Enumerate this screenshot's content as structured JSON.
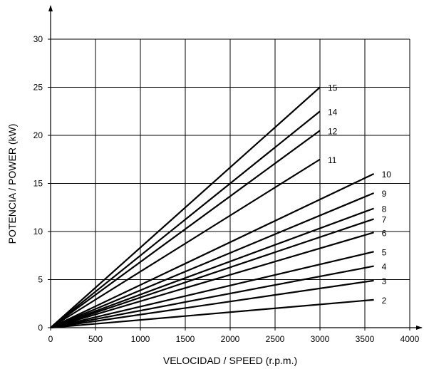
{
  "chart_data": {
    "type": "line",
    "title": "",
    "xlabel": "VELOCIDAD / SPEED (r.p.m.)",
    "ylabel": "POTENCIA / POWER (kW)",
    "xlim": [
      0,
      4000
    ],
    "ylim": [
      0,
      30
    ],
    "x_ticks": [
      0,
      500,
      1000,
      1500,
      2000,
      2500,
      3000,
      3500,
      4000
    ],
    "y_ticks": [
      0,
      5,
      10,
      15,
      20,
      25,
      30
    ],
    "grid": true,
    "legend": "none",
    "series": [
      {
        "name": "15",
        "x": [
          0,
          3000
        ],
        "y": [
          0,
          25
        ]
      },
      {
        "name": "14",
        "x": [
          0,
          3000
        ],
        "y": [
          0,
          22.5
        ]
      },
      {
        "name": "12",
        "x": [
          0,
          3000
        ],
        "y": [
          0,
          20.5
        ]
      },
      {
        "name": "11",
        "x": [
          0,
          3000
        ],
        "y": [
          0,
          17.5
        ]
      },
      {
        "name": "10",
        "x": [
          0,
          3600
        ],
        "y": [
          0,
          16
        ]
      },
      {
        "name": "9",
        "x": [
          0,
          3600
        ],
        "y": [
          0,
          14
        ]
      },
      {
        "name": "8",
        "x": [
          0,
          3600
        ],
        "y": [
          0,
          12.4
        ]
      },
      {
        "name": "7",
        "x": [
          0,
          3600
        ],
        "y": [
          0,
          11.3
        ]
      },
      {
        "name": "6",
        "x": [
          0,
          3600
        ],
        "y": [
          0,
          9.9
        ]
      },
      {
        "name": "5",
        "x": [
          0,
          3600
        ],
        "y": [
          0,
          7.9
        ]
      },
      {
        "name": "4",
        "x": [
          0,
          3600
        ],
        "y": [
          0,
          6.4
        ]
      },
      {
        "name": "3",
        "x": [
          0,
          3600
        ],
        "y": [
          0,
          4.9
        ]
      },
      {
        "name": "2",
        "x": [
          0,
          3600
        ],
        "y": [
          0,
          2.9
        ]
      }
    ]
  }
}
